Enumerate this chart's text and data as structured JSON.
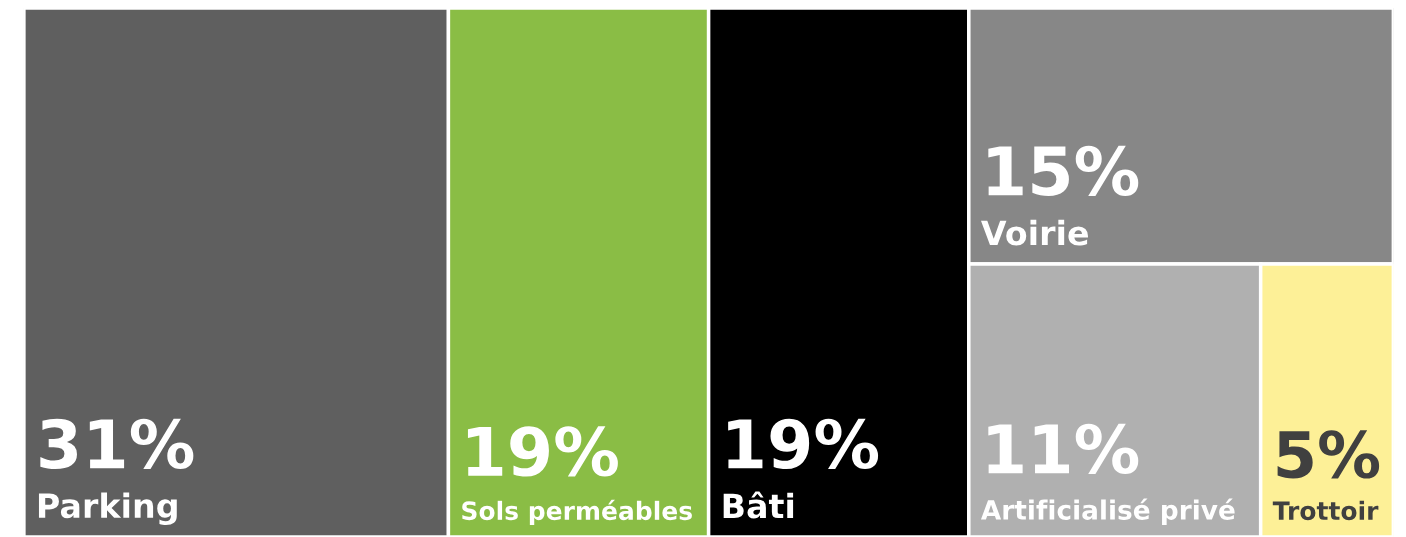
{
  "chart_data": {
    "type": "other",
    "categories": [
      "Parking",
      "Sols perméables",
      "Bâti",
      "Voirie",
      "Artificialisé privé",
      "Trottoir"
    ],
    "values": [
      31,
      19,
      19,
      15,
      11,
      5
    ],
    "value_labels": [
      "31%",
      "19%",
      "19%",
      "15%",
      "11%",
      "5%"
    ],
    "colors": [
      "#5f5f5f",
      "#8abd45",
      "#000000",
      "#878787",
      "#b0b0b0",
      "#fdf097"
    ]
  }
}
